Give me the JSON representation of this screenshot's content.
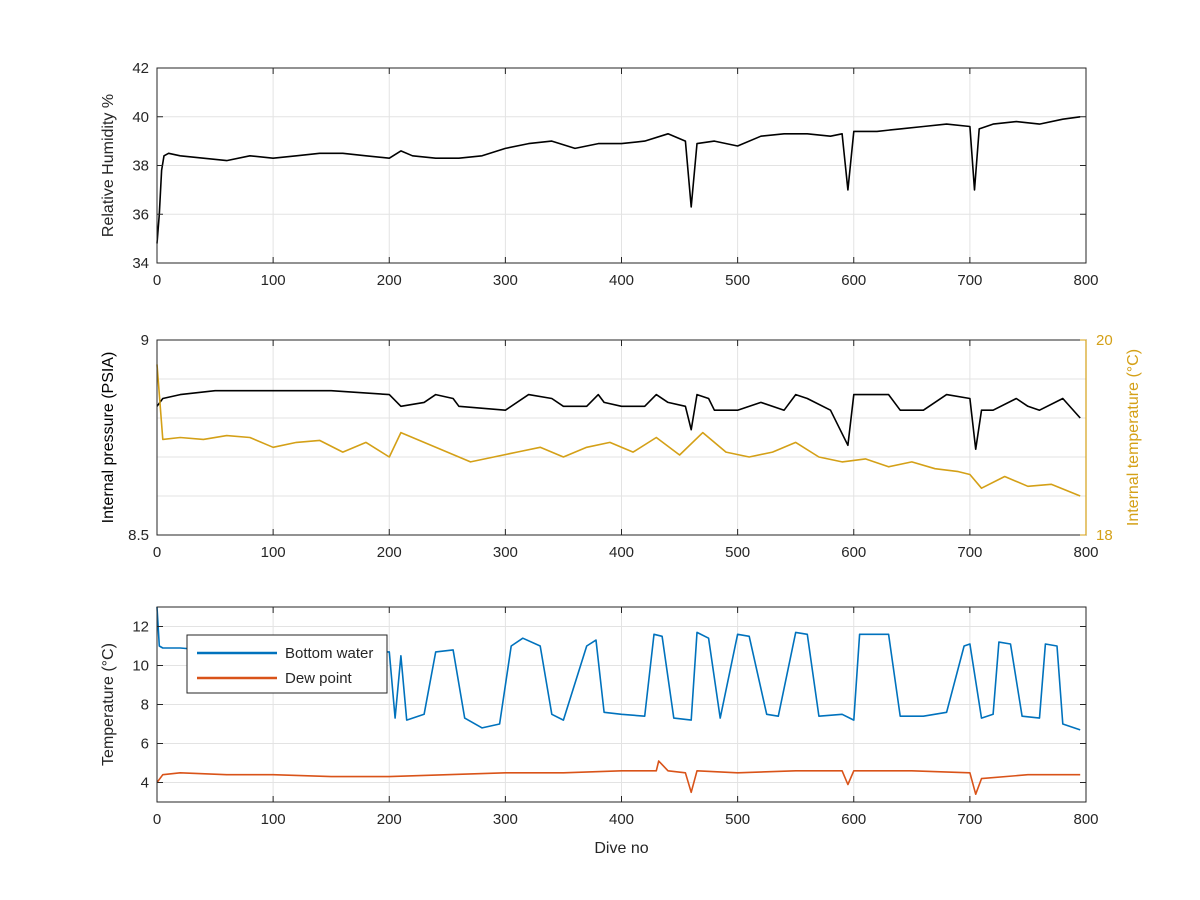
{
  "chart_data": [
    {
      "type": "line",
      "xlabel": "",
      "ylabel": "Relative Humidity %",
      "xlim": [
        0,
        800
      ],
      "ylim": [
        34,
        42
      ],
      "xticks": [
        0,
        100,
        200,
        300,
        400,
        500,
        600,
        700,
        800
      ],
      "yticks": [
        34,
        36,
        38,
        40,
        42
      ],
      "grid": true,
      "series": [
        {
          "color": "#000000",
          "x": [
            0,
            2,
            4,
            6,
            10,
            20,
            40,
            60,
            80,
            100,
            120,
            140,
            160,
            180,
            200,
            210,
            220,
            240,
            260,
            280,
            300,
            320,
            340,
            360,
            380,
            400,
            420,
            440,
            455,
            460,
            465,
            480,
            500,
            520,
            540,
            560,
            580,
            590,
            595,
            600,
            620,
            640,
            660,
            680,
            700,
            704,
            708,
            720,
            740,
            760,
            780,
            795
          ],
          "y": [
            34.8,
            36.0,
            37.8,
            38.4,
            38.5,
            38.4,
            38.3,
            38.2,
            38.4,
            38.3,
            38.4,
            38.5,
            38.5,
            38.4,
            38.3,
            38.6,
            38.4,
            38.3,
            38.3,
            38.4,
            38.7,
            38.9,
            39.0,
            38.7,
            38.9,
            38.9,
            39.0,
            39.3,
            39.0,
            36.3,
            38.9,
            39.0,
            38.8,
            39.2,
            39.3,
            39.3,
            39.2,
            39.3,
            37.0,
            39.4,
            39.4,
            39.5,
            39.6,
            39.7,
            39.6,
            37.0,
            39.5,
            39.7,
            39.8,
            39.7,
            39.9,
            40.0
          ]
        }
      ]
    },
    {
      "type": "line",
      "xlabel": "",
      "ylabel": "Internal pressure (PSIA)",
      "ylabel_right": "Internal temperature (°C)",
      "xlim": [
        0,
        800
      ],
      "ylim": [
        8.5,
        9
      ],
      "ylim_right": [
        18,
        20
      ],
      "xticks": [
        0,
        100,
        200,
        300,
        400,
        500,
        600,
        700,
        800
      ],
      "yticks": [
        8.5,
        9
      ],
      "yticks_right": [
        18,
        20
      ],
      "grid": true,
      "series": [
        {
          "axis": "left",
          "color": "#000000",
          "x": [
            0,
            5,
            20,
            50,
            100,
            150,
            200,
            210,
            230,
            240,
            255,
            260,
            300,
            320,
            340,
            350,
            370,
            380,
            385,
            400,
            420,
            430,
            440,
            455,
            460,
            465,
            475,
            480,
            490,
            500,
            520,
            540,
            550,
            560,
            580,
            595,
            600,
            630,
            640,
            660,
            680,
            700,
            705,
            710,
            720,
            740,
            750,
            760,
            780,
            795
          ],
          "y": [
            8.83,
            8.85,
            8.86,
            8.87,
            8.87,
            8.87,
            8.86,
            8.83,
            8.84,
            8.86,
            8.85,
            8.83,
            8.82,
            8.86,
            8.85,
            8.83,
            8.83,
            8.86,
            8.84,
            8.83,
            8.83,
            8.86,
            8.84,
            8.83,
            8.77,
            8.86,
            8.85,
            8.82,
            8.82,
            8.82,
            8.84,
            8.82,
            8.86,
            8.85,
            8.82,
            8.73,
            8.86,
            8.86,
            8.82,
            8.82,
            8.86,
            8.85,
            8.72,
            8.82,
            8.82,
            8.85,
            8.83,
            8.82,
            8.85,
            8.8
          ]
        },
        {
          "axis": "right",
          "color": "#D4A017",
          "x": [
            0,
            5,
            20,
            40,
            60,
            80,
            100,
            120,
            140,
            160,
            180,
            200,
            210,
            230,
            250,
            270,
            290,
            310,
            330,
            350,
            370,
            390,
            410,
            430,
            450,
            470,
            490,
            510,
            530,
            550,
            570,
            590,
            610,
            630,
            650,
            670,
            690,
            700,
            710,
            730,
            750,
            770,
            795
          ],
          "y": [
            19.75,
            18.98,
            19.0,
            18.98,
            19.02,
            19.0,
            18.9,
            18.95,
            18.97,
            18.85,
            18.95,
            18.8,
            19.05,
            18.95,
            18.85,
            18.75,
            18.8,
            18.85,
            18.9,
            18.8,
            18.9,
            18.95,
            18.85,
            19.0,
            18.82,
            19.05,
            18.85,
            18.8,
            18.85,
            18.95,
            18.8,
            18.75,
            18.78,
            18.7,
            18.75,
            18.68,
            18.65,
            18.62,
            18.48,
            18.6,
            18.5,
            18.52,
            18.4
          ]
        }
      ]
    },
    {
      "type": "line",
      "xlabel": "Dive no",
      "ylabel": "Temperature (°C)",
      "xlim": [
        0,
        800
      ],
      "ylim": [
        3,
        13
      ],
      "xticks": [
        0,
        100,
        200,
        300,
        400,
        500,
        600,
        700,
        800
      ],
      "yticks": [
        4,
        6,
        8,
        10,
        12
      ],
      "grid": true,
      "legend": "top-left",
      "series": [
        {
          "name": "Bottom water",
          "color": "#0072BD",
          "x": [
            0,
            2,
            5,
            20,
            40,
            100,
            150,
            200,
            205,
            210,
            215,
            230,
            240,
            255,
            265,
            280,
            295,
            305,
            315,
            330,
            340,
            350,
            370,
            378,
            385,
            400,
            420,
            428,
            435,
            445,
            460,
            465,
            475,
            485,
            500,
            510,
            525,
            535,
            550,
            560,
            570,
            590,
            600,
            605,
            630,
            640,
            660,
            680,
            695,
            700,
            710,
            720,
            725,
            735,
            745,
            760,
            765,
            775,
            780,
            795
          ],
          "y": [
            13.0,
            11.0,
            10.9,
            10.9,
            10.8,
            10.8,
            10.7,
            10.7,
            7.3,
            10.5,
            7.2,
            7.5,
            10.7,
            10.8,
            7.3,
            6.8,
            7.0,
            11.0,
            11.4,
            11.0,
            7.5,
            7.2,
            11.0,
            11.3,
            7.6,
            7.5,
            7.4,
            11.6,
            11.5,
            7.3,
            7.2,
            11.7,
            11.4,
            7.3,
            11.6,
            11.5,
            7.5,
            7.4,
            11.7,
            11.6,
            7.4,
            7.5,
            7.2,
            11.6,
            11.6,
            7.4,
            7.4,
            7.6,
            11.0,
            11.1,
            7.3,
            7.5,
            11.2,
            11.1,
            7.4,
            7.3,
            11.1,
            11.0,
            7.0,
            6.7
          ]
        },
        {
          "name": "Dew point",
          "color": "#D95319",
          "x": [
            0,
            5,
            20,
            60,
            100,
            150,
            200,
            250,
            300,
            350,
            400,
            430,
            432,
            440,
            455,
            460,
            465,
            500,
            550,
            590,
            595,
            600,
            650,
            700,
            705,
            710,
            750,
            795
          ],
          "y": [
            4.0,
            4.4,
            4.5,
            4.4,
            4.4,
            4.3,
            4.3,
            4.4,
            4.5,
            4.5,
            4.6,
            4.6,
            5.1,
            4.6,
            4.5,
            3.5,
            4.6,
            4.5,
            4.6,
            4.6,
            3.9,
            4.6,
            4.6,
            4.5,
            3.4,
            4.2,
            4.4,
            4.4
          ]
        }
      ]
    }
  ]
}
